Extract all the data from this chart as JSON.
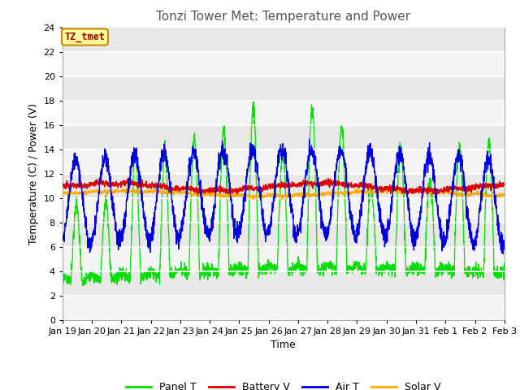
{
  "title": "Tonzi Tower Met: Temperature and Power",
  "xlabel": "Time",
  "ylabel": "Temperature (C) / Power (V)",
  "ylim": [
    0,
    24
  ],
  "yticks": [
    0,
    2,
    4,
    6,
    8,
    10,
    12,
    14,
    16,
    18,
    20,
    22,
    24
  ],
  "xtick_labels": [
    "Jan 19",
    "Jan 20",
    "Jan 21",
    "Jan 22",
    "Jan 23",
    "Jan 24",
    "Jan 25",
    "Jan 26",
    "Jan 27",
    "Jan 28",
    "Jan 29",
    "Jan 30",
    "Jan 31",
    "Feb 1",
    "Feb 2",
    "Feb 3"
  ],
  "legend_labels": [
    "Panel T",
    "Battery V",
    "Air T",
    "Solar V"
  ],
  "legend_colors": [
    "#00dd00",
    "#dd0000",
    "#0000dd",
    "#ffaa00"
  ],
  "line_colors": {
    "panel_t": "#00dd00",
    "battery_v": "#dd0000",
    "air_t": "#0000dd",
    "solar_v": "#ffaa00"
  },
  "annotation_text": "TZ_tmet",
  "annotation_color": "#990000",
  "annotation_bg": "#ffff99",
  "annotation_edge": "#cc8800",
  "plot_bg": "#e8e8e8",
  "stripe_color": "#f4f4f4",
  "n_days": 15,
  "pts_per_day": 144,
  "title_fontsize": 11,
  "axis_fontsize": 9,
  "tick_fontsize": 8
}
